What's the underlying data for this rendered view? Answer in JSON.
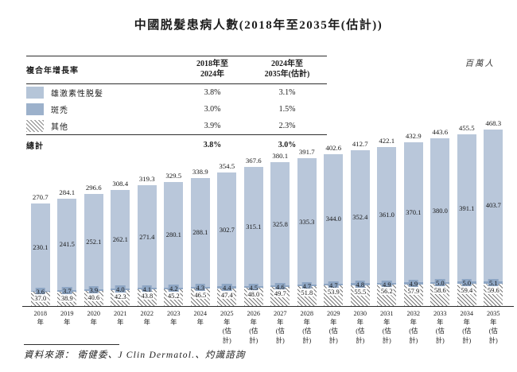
{
  "title": "中國脱髮患病人數(2018年至2035年(估計))",
  "unit_label": "百萬人",
  "cagr_table": {
    "header": {
      "label": "複合年增長率",
      "col1": "2018年至\n2024年",
      "col2": "2024年至\n2035年(估計)"
    },
    "rows": [
      {
        "label": "雄激素性脱髮",
        "swatch": "solid-light-blue",
        "col1": "3.8%",
        "col2": "3.1%"
      },
      {
        "label": "斑禿",
        "swatch": "solid-dark-blue",
        "col1": "3.0%",
        "col2": "1.5%"
      },
      {
        "label": "其他",
        "swatch": "diagonal-hatch",
        "col1": "3.9%",
        "col2": "2.3%"
      }
    ],
    "total": {
      "label": "總計",
      "col1": "3.8%",
      "col2": "3.0%"
    }
  },
  "chart_data": {
    "type": "bar",
    "stacked": true,
    "unit": "百萬人",
    "title": "中國脱髮患病人數(2018年至2035年(估計))",
    "categories": [
      "2018年",
      "2019年",
      "2020年",
      "2021年",
      "2022年",
      "2023年",
      "2024年",
      "2025年",
      "2026年",
      "2027年",
      "2028年",
      "2029年",
      "2030年",
      "2031年",
      "2032年",
      "2033年",
      "2034年",
      "2035年"
    ],
    "estimate_note": "(估計)",
    "estimate_from_index": 7,
    "series": [
      {
        "name": "雄激素性脱髮",
        "values": [
          230.1,
          241.5,
          252.1,
          262.1,
          271.4,
          280.1,
          288.1,
          302.7,
          315.1,
          325.8,
          335.3,
          344.0,
          352.4,
          361.0,
          370.1,
          380.0,
          391.1,
          403.7
        ]
      },
      {
        "name": "斑禿",
        "values": [
          3.6,
          3.7,
          3.9,
          4.0,
          4.1,
          4.2,
          4.3,
          4.4,
          4.5,
          4.6,
          4.7,
          4.7,
          4.8,
          4.9,
          4.9,
          5.0,
          5.0,
          5.1
        ]
      },
      {
        "name": "其他",
        "values": [
          37.0,
          38.9,
          40.6,
          42.3,
          43.8,
          45.2,
          46.5,
          47.4,
          48.0,
          49.7,
          51.8,
          53.9,
          55.5,
          56.2,
          57.9,
          58.6,
          59.4,
          59.6
        ]
      }
    ],
    "totals": [
      270.7,
      284.1,
      296.6,
      308.4,
      319.3,
      329.5,
      338.9,
      354.5,
      367.6,
      380.1,
      391.7,
      402.6,
      412.7,
      422.1,
      432.9,
      443.6,
      455.5,
      468.3
    ],
    "ylim": [
      0,
      478
    ],
    "grid": false,
    "legend_position": "top-left-table"
  },
  "colors": {
    "androgenetic_fill": "#b9c7da",
    "areata_fill": "#8ea6c4",
    "legend_dark_swatch": "#9cb1cb",
    "hatch_line": "#777777",
    "axis_line": "#2b2b2b",
    "text": "#1c1c1c"
  },
  "source": "資料來源： 衛健委、J Clin Dermatol.、灼識諮詢"
}
